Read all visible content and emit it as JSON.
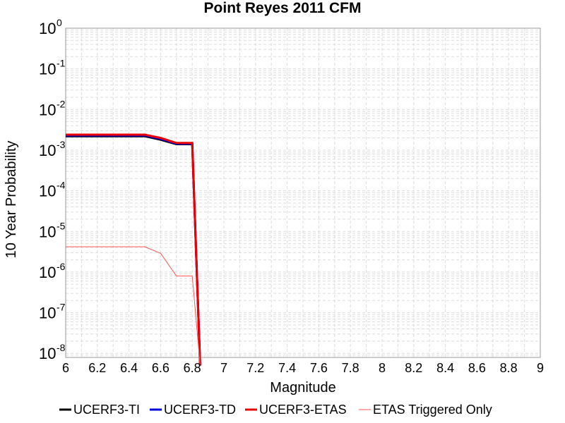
{
  "chart_data": {
    "type": "line",
    "title": "Point Reyes 2011 CFM",
    "xlabel": "Magnitude",
    "ylabel": "10 Year Probability",
    "xlim": [
      6,
      9
    ],
    "ylim_log10": [
      -8.1,
      0
    ],
    "y_scale": "log",
    "grid": true,
    "legend_placement": "bottom",
    "x_ticks": [
      "6",
      "6.2",
      "6.4",
      "6.6",
      "6.8",
      "7",
      "7.2",
      "7.4",
      "7.6",
      "7.8",
      "8",
      "8.2",
      "8.4",
      "8.6",
      "8.8",
      "9"
    ],
    "y_ticks": [
      {
        "base": "10",
        "exp": "0",
        "log": 0
      },
      {
        "base": "10",
        "exp": "-1",
        "log": -1
      },
      {
        "base": "10",
        "exp": "-2",
        "log": -2
      },
      {
        "base": "10",
        "exp": "-3",
        "log": -3
      },
      {
        "base": "10",
        "exp": "-4",
        "log": -4
      },
      {
        "base": "10",
        "exp": "-5",
        "log": -5
      },
      {
        "base": "10",
        "exp": "-6",
        "log": -6
      },
      {
        "base": "10",
        "exp": "-7",
        "log": -7
      },
      {
        "base": "10",
        "exp": "-8",
        "log": -8
      }
    ],
    "series": [
      {
        "name": "UCERF3-TI",
        "color": "#000000",
        "width": 3,
        "x": [
          6.0,
          6.5,
          6.6,
          6.7,
          6.8,
          6.85
        ],
        "y": [
          0.0022,
          0.0022,
          0.0018,
          0.0014,
          0.0014,
          5e-09
        ]
      },
      {
        "name": "UCERF3-TD",
        "color": "#0000dd",
        "width": 3,
        "x": [
          6.0,
          6.5,
          6.6,
          6.7,
          6.8,
          6.85
        ],
        "y": [
          0.0023,
          0.0023,
          0.0019,
          0.00145,
          0.00145,
          5e-09
        ]
      },
      {
        "name": "UCERF3-ETAS",
        "color": "#ee0000",
        "width": 3,
        "x": [
          6.0,
          6.5,
          6.6,
          6.7,
          6.8,
          6.85
        ],
        "y": [
          0.0024,
          0.0024,
          0.002,
          0.0015,
          0.0015,
          5e-09
        ]
      },
      {
        "name": "ETAS Triggered Only",
        "color": "#ff5555",
        "width": 1,
        "x": [
          6.0,
          6.5,
          6.6,
          6.7,
          6.8,
          6.85
        ],
        "y": [
          4.2e-06,
          4.2e-06,
          2.9e-06,
          8e-07,
          8e-07,
          5e-09
        ]
      }
    ]
  }
}
